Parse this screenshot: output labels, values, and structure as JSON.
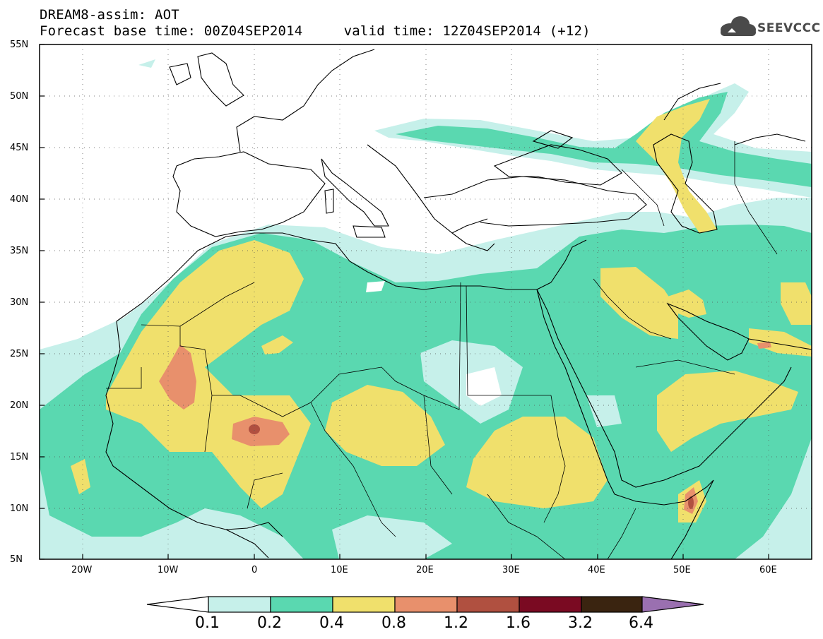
{
  "header": {
    "title": "DREAM8-assim: AOT",
    "base_time_label": "Forecast base time: 00Z04SEP2014",
    "valid_time_label": "valid time: 12Z04SEP2014 (+12)"
  },
  "logo": {
    "text": "SEEVCCC",
    "icon": "cloud-icon"
  },
  "map": {
    "projection": "equirectangular",
    "lon_range": [
      -25,
      65
    ],
    "lat_range": [
      5,
      55
    ],
    "lat_ticks": [
      "55N",
      "50N",
      "45N",
      "40N",
      "35N",
      "30N",
      "25N",
      "20N",
      "15N",
      "10N",
      "5N"
    ],
    "lon_ticks": [
      "20W",
      "10W",
      "0",
      "10E",
      "20E",
      "30E",
      "40E",
      "50E",
      "60E"
    ],
    "grid": "dotted"
  },
  "colorbar": {
    "labels": [
      "0.1",
      "0.2",
      "0.4",
      "0.8",
      "1.2",
      "1.6",
      "3.2",
      "6.4"
    ],
    "colors": [
      "#c6f0ea",
      "#5ad8b0",
      "#f0e06c",
      "#e8906c",
      "#b05040",
      "#7a0a22",
      "#3a2410",
      "#9a70b0"
    ],
    "lower_arrow_color": "#ffffff",
    "upper_arrow_color": "#9a70b0"
  }
}
